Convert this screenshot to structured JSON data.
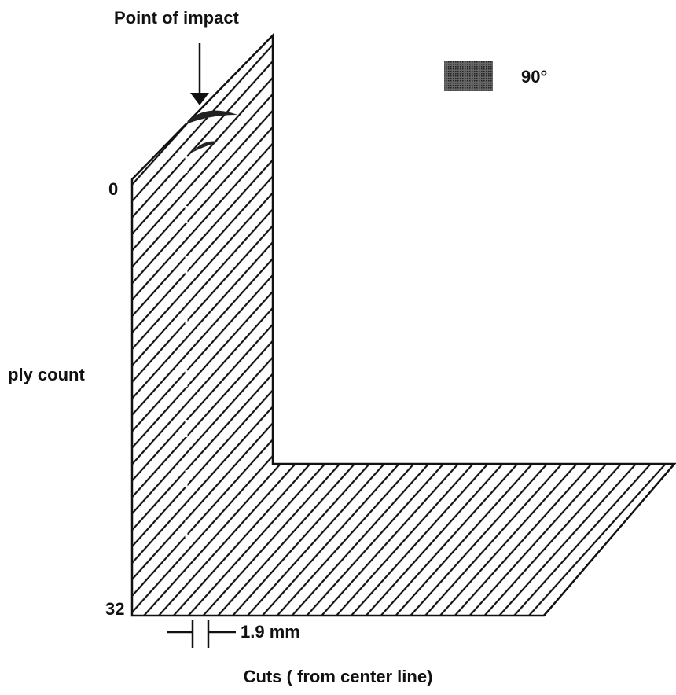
{
  "title": "Point of impact",
  "legend": {
    "label": "90°"
  },
  "axis": {
    "label": "ply count",
    "top": "0",
    "bottom": "32"
  },
  "dimension": {
    "label": "1.9 mm"
  },
  "caption": "Cuts ( from center line)"
}
